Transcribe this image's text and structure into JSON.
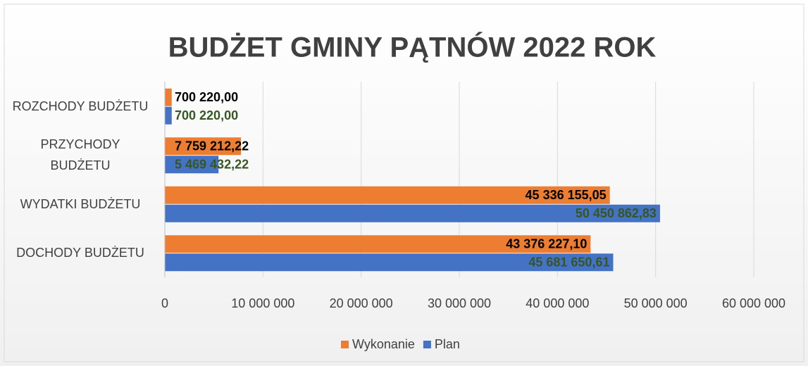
{
  "chart_data": {
    "type": "bar",
    "orientation": "horizontal",
    "title": "BUDŻET GMINY PĄTNÓW 2022 ROK",
    "categories": [
      "ROZCHODY BUDŻETU",
      "PRZYCHODY BUDŻETU",
      "WYDATKI BUDŻETU",
      "DOCHODY BUDŻETU"
    ],
    "series": [
      {
        "name": "Wykonanie",
        "color": "#ed7d31",
        "label_color": "#000000",
        "values": [
          700220,
          7759212.22,
          45336155.05,
          43376227.1
        ],
        "value_labels": [
          "700 220,00",
          "7 759 212,22",
          "45 336 155,05",
          "43 376 227,10"
        ]
      },
      {
        "name": "Plan",
        "color": "#4472c4",
        "label_color": "#375623",
        "values": [
          700220,
          5469432.22,
          50450862.83,
          45681650.61
        ],
        "value_labels": [
          "700 220,00",
          "5 469 432,22",
          "50 450 862,83",
          "45 681 650,61"
        ]
      }
    ],
    "xlim": [
      0,
      60000000
    ],
    "xticks": [
      0,
      {
        "value": 10000000,
        "label": "10 000 000"
      },
      {
        "value": 20000000,
        "label": "20 000 000"
      },
      {
        "value": 30000000,
        "label": "30 000 000"
      },
      {
        "value": 40000000,
        "label": "40 000 000"
      },
      {
        "value": 50000000,
        "label": "50 000 000"
      },
      {
        "value": 60000000,
        "label": "60 000 000"
      }
    ],
    "grid": true,
    "legend": "bottom"
  }
}
